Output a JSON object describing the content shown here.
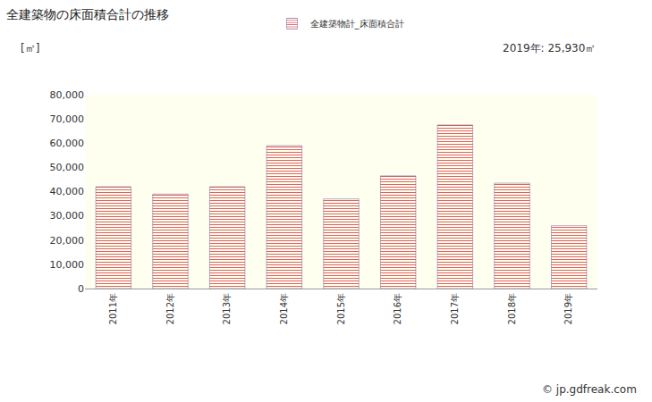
{
  "chart_data": {
    "type": "bar",
    "title": "全建築物の床面積合計の推移",
    "y_label": "[㎡]",
    "categories": [
      "2011年",
      "2012年",
      "2013年",
      "2014年",
      "2015年",
      "2016年",
      "2017年",
      "2018年",
      "2019年"
    ],
    "series": [
      {
        "name": "全建築物計_床面積合計",
        "color": "#9a7fb0",
        "values": [
          42000,
          39000,
          42000,
          59000,
          37000,
          46500,
          67500,
          43500,
          25930
        ]
      }
    ],
    "ylim": [
      0,
      80000
    ],
    "yticks": [
      0,
      {
        "value": 10000,
        "label": "10,000"
      },
      {
        "value": 20000,
        "label": "20,000"
      },
      {
        "value": 30000,
        "label": "30,000"
      },
      {
        "value": 40000,
        "label": "40,000"
      },
      {
        "value": 50000,
        "label": "50,000"
      },
      {
        "value": 60000,
        "label": "60,000"
      },
      {
        "value": 70000,
        "label": "70,000"
      },
      {
        "value": 80000,
        "label": "80,000"
      }
    ],
    "grid": false,
    "legend": "top",
    "annotations": [
      "2019年: 25,930㎡",
      "© jp.gdfreak.com"
    ]
  }
}
